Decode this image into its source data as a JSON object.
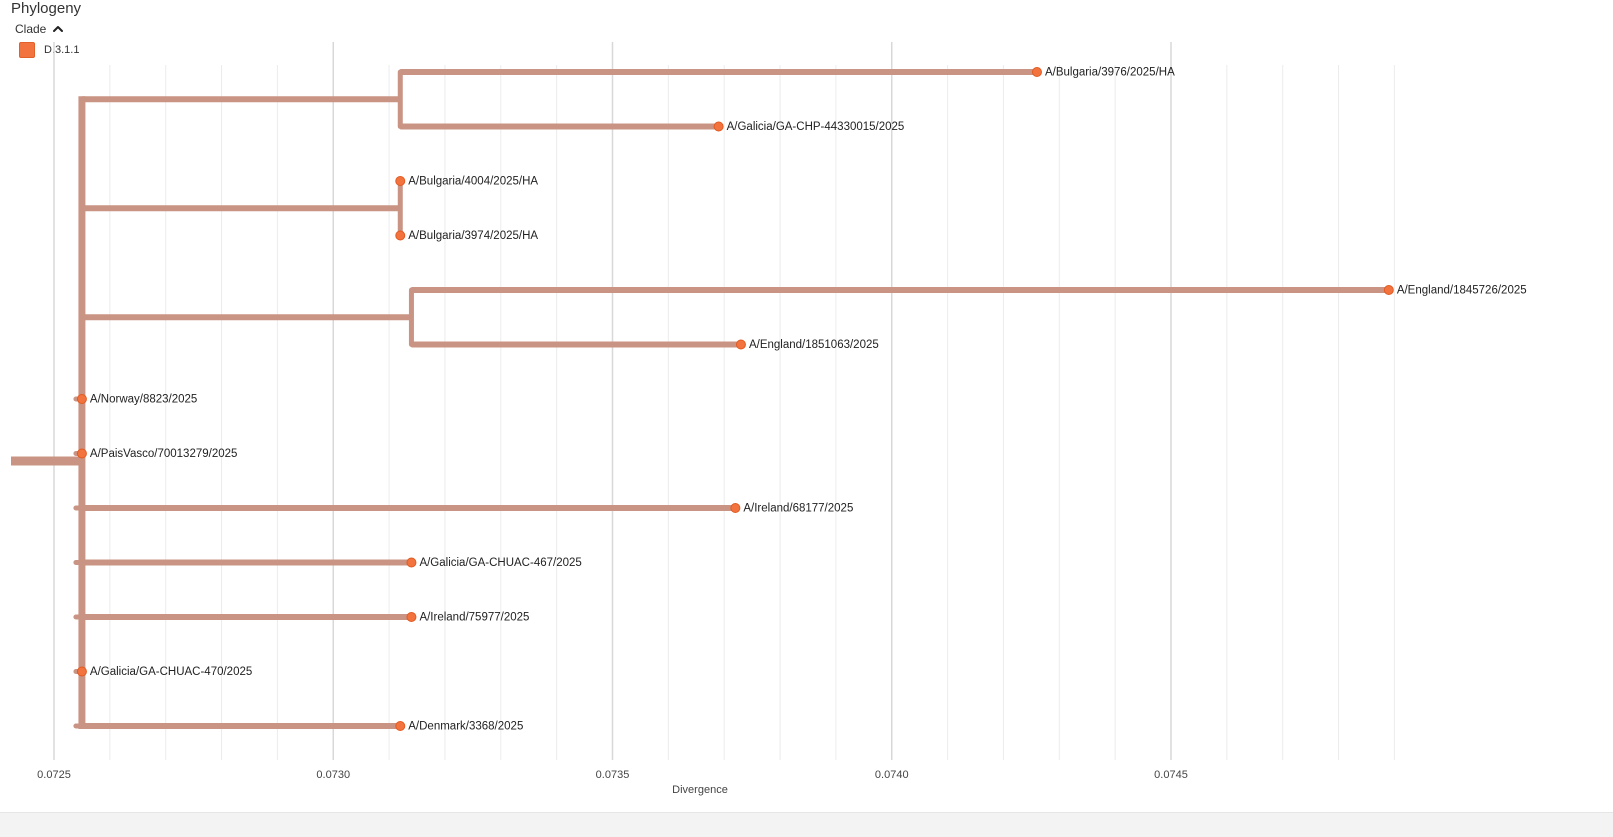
{
  "panel": {
    "title": "Phylogeny",
    "legend_toggle_label": "Clade",
    "legend_items": [
      {
        "label": "D.3.1.1",
        "color": "#f2733d"
      }
    ]
  },
  "colors": {
    "branch": "#c99483",
    "tip": "#f2733d",
    "grid_major": "#d8d8d8",
    "grid_minor": "#ececec"
  },
  "chart_data": {
    "type": "tree",
    "xlabel": "Divergence",
    "x_ticks": [
      "0.0725",
      "0.0730",
      "0.0735",
      "0.0740",
      "0.0745"
    ],
    "x_tick_values": [
      0.0725,
      0.073,
      0.0735,
      0.074,
      0.0745
    ],
    "xlim": [
      0.07245,
      0.0749
    ],
    "root_divergence": 0.07255,
    "clades": [
      {
        "divergence": 0.07312,
        "tips": [
          {
            "label": "A/Bulgaria/3976/2025/HA",
            "divergence": 0.07426
          },
          {
            "label": "A/Galicia/GA-CHP-44330015/2025",
            "divergence": 0.07369
          }
        ]
      },
      {
        "divergence": 0.07312,
        "tips": [
          {
            "label": "A/Bulgaria/4004/2025/HA",
            "divergence": 0.07312
          },
          {
            "label": "A/Bulgaria/3974/2025/HA",
            "divergence": 0.07312
          }
        ]
      },
      {
        "divergence": 0.07314,
        "tips": [
          {
            "label": "A/England/1845726/2025",
            "divergence": 0.07489
          },
          {
            "label": "A/England/1851063/2025",
            "divergence": 0.07373
          }
        ]
      },
      {
        "tips": [
          {
            "label": "A/Norway/8823/2025",
            "divergence": 0.07255
          }
        ]
      },
      {
        "tips": [
          {
            "label": "A/PaisVasco/70013279/2025",
            "divergence": 0.07255
          }
        ]
      },
      {
        "tips": [
          {
            "label": "A/Ireland/68177/2025",
            "divergence": 0.07372
          }
        ]
      },
      {
        "tips": [
          {
            "label": "A/Galicia/GA-CHUAC-467/2025",
            "divergence": 0.07314
          }
        ]
      },
      {
        "tips": [
          {
            "label": "A/Ireland/75977/2025",
            "divergence": 0.07314
          }
        ]
      },
      {
        "tips": [
          {
            "label": "A/Galicia/GA-CHUAC-470/2025",
            "divergence": 0.07255
          }
        ]
      },
      {
        "tips": [
          {
            "label": "A/Denmark/3368/2025",
            "divergence": 0.07312
          }
        ]
      }
    ]
  }
}
